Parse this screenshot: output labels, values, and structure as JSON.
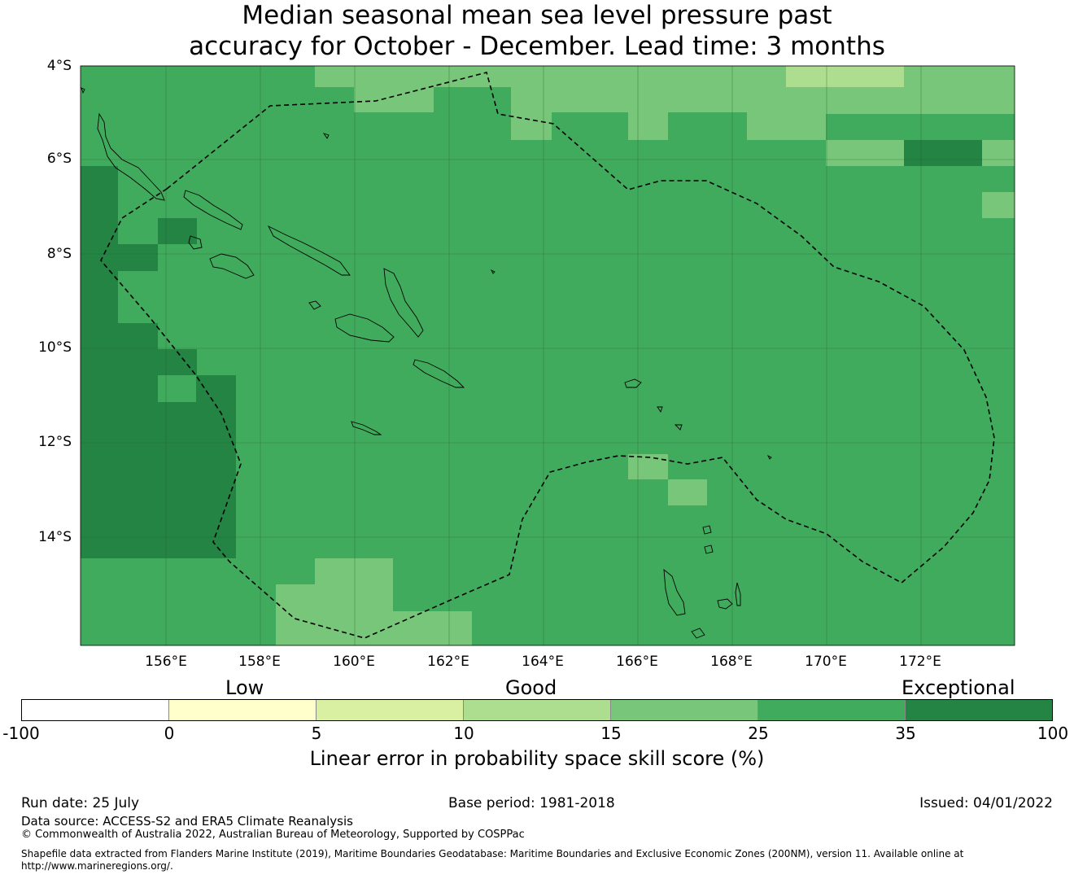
{
  "title": {
    "line1": "Median seasonal mean sea level pressure past",
    "line2": "accuracy for October - December. Lead time: 3 months"
  },
  "map": {
    "lat_labels": [
      "4°S",
      "6°S",
      "8°S",
      "10°S",
      "12°S",
      "14°S"
    ],
    "lon_labels": [
      "156°E",
      "158°E",
      "160°E",
      "162°E",
      "164°E",
      "166°E",
      "168°E",
      "170°E",
      "172°E"
    ],
    "land_color": "#ffffff",
    "default_fill_color": "#41ab5d"
  },
  "legend": {
    "categories": [
      "Low",
      "Good",
      "Exceptional"
    ],
    "bins": [
      {
        "from": "-100",
        "to": "0",
        "color": "#ffffff"
      },
      {
        "from": "0",
        "to": "5",
        "color": "#ffffcc"
      },
      {
        "from": "5",
        "to": "10",
        "color": "#d9f0a3"
      },
      {
        "from": "10",
        "to": "15",
        "color": "#addd8e"
      },
      {
        "from": "15",
        "to": "25",
        "color": "#78c679"
      },
      {
        "from": "25",
        "to": "35",
        "color": "#41ab5d"
      },
      {
        "from": "35",
        "to": "100",
        "color": "#238443"
      }
    ],
    "tick_labels": [
      "-100",
      "0",
      "5",
      "10",
      "15",
      "25",
      "35",
      "100"
    ],
    "axis_label": "Linear error in probability space skill score (%)"
  },
  "footer": {
    "run_date": "Run date: 25 July",
    "base_period": "Base period: 1981-2018",
    "issued": "Issued: 04/01/2022",
    "data_source": "Data source: ACCESS-S2 and ERA5 Climate Reanalysis",
    "copyright": "© Commonwealth of Australia 2022, Australian Bureau of Meteorology, Supported by COSPPac",
    "shapefile_line1": "Shapefile data extracted from Flanders Marine Institute (2019), Maritime Boundaries Geodatabase: Maritime Boundaries and Exclusive Economic Zones (200NM), version 11. Available online at",
    "shapefile_line2": "http://www.marineregions.org/."
  }
}
